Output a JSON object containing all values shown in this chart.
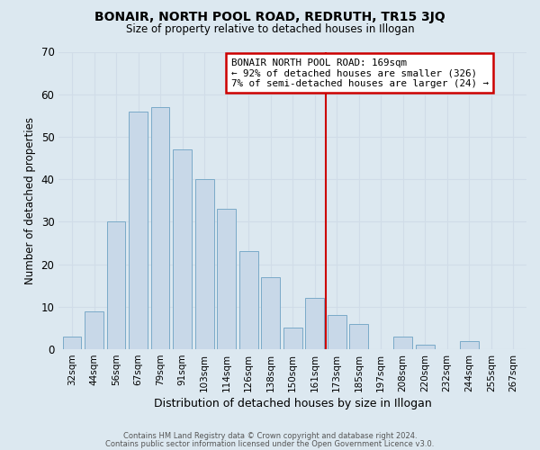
{
  "title": "BONAIR, NORTH POOL ROAD, REDRUTH, TR15 3JQ",
  "subtitle": "Size of property relative to detached houses in Illogan",
  "xlabel": "Distribution of detached houses by size in Illogan",
  "ylabel": "Number of detached properties",
  "footer_line1": "Contains HM Land Registry data © Crown copyright and database right 2024.",
  "footer_line2": "Contains public sector information licensed under the Open Government Licence v3.0.",
  "bar_labels": [
    "32sqm",
    "44sqm",
    "56sqm",
    "67sqm",
    "79sqm",
    "91sqm",
    "103sqm",
    "114sqm",
    "126sqm",
    "138sqm",
    "150sqm",
    "161sqm",
    "173sqm",
    "185sqm",
    "197sqm",
    "208sqm",
    "220sqm",
    "232sqm",
    "244sqm",
    "255sqm",
    "267sqm"
  ],
  "bar_values": [
    3,
    9,
    30,
    56,
    57,
    47,
    40,
    33,
    23,
    17,
    5,
    12,
    8,
    6,
    0,
    3,
    1,
    0,
    2,
    0,
    0
  ],
  "bar_color": "#c8d8e8",
  "bar_edge_color": "#7aaac8",
  "ylim": [
    0,
    70
  ],
  "yticks": [
    0,
    10,
    20,
    30,
    40,
    50,
    60,
    70
  ],
  "grid_color": "#d0dce8",
  "annotation_line1": "BONAIR NORTH POOL ROAD: 169sqm",
  "annotation_line2": "← 92% of detached houses are smaller (326)",
  "annotation_line3": "7% of semi-detached houses are larger (24) →",
  "annotation_box_color": "#ffffff",
  "annotation_box_edge": "#cc0000",
  "vline_x_index": 12,
  "vline_color": "#cc0000",
  "background_color": "#dce8f0",
  "plot_background": "#dce8f0"
}
